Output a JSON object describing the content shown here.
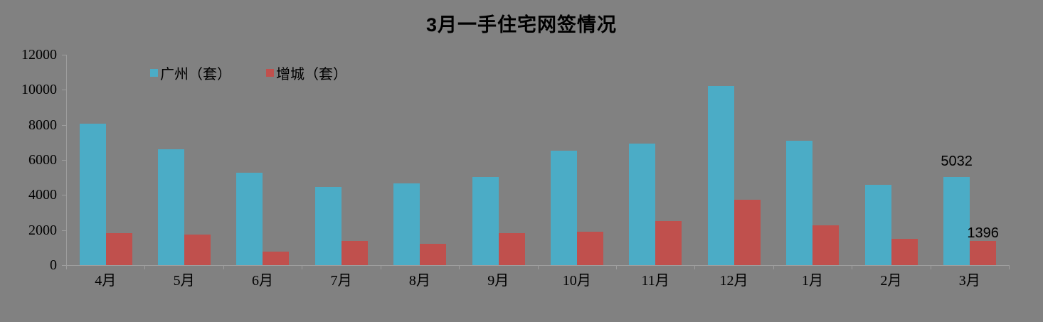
{
  "title": "3月一手住宅网签情况",
  "colors": {
    "background": "#818181",
    "axis": "#9e9e9e",
    "text": "#000000",
    "series_guangzhou": "#4BACC6",
    "series_zengcheng": "#C0504D"
  },
  "chart_data": {
    "type": "bar",
    "title": "3月一手住宅网签情况",
    "categories": [
      "4月",
      "5月",
      "6月",
      "7月",
      "8月",
      "9月",
      "10月",
      "11月",
      "12月",
      "1月",
      "2月",
      "3月"
    ],
    "series": [
      {
        "name": "广州（套）",
        "color": "#4BACC6",
        "values": [
          8050,
          6600,
          5280,
          4450,
          4650,
          5020,
          6510,
          6920,
          10200,
          7090,
          4570,
          5032
        ]
      },
      {
        "name": "增城（套）",
        "color": "#C0504D",
        "values": [
          1830,
          1760,
          770,
          1360,
          1230,
          1830,
          1890,
          2500,
          3730,
          2270,
          1480,
          1396
        ]
      }
    ],
    "y_axis": {
      "min": 0,
      "max": 12000,
      "step": 2000,
      "tick_labels": [
        "0",
        "2000",
        "4000",
        "6000",
        "8000",
        "10000",
        "12000"
      ]
    },
    "data_labels": [
      {
        "series": 0,
        "index": 11,
        "text": "5032"
      },
      {
        "series": 1,
        "index": 11,
        "text": "1396"
      }
    ],
    "legend_position": "top-inside-left",
    "grid": false,
    "xlabel": "",
    "ylabel": ""
  }
}
